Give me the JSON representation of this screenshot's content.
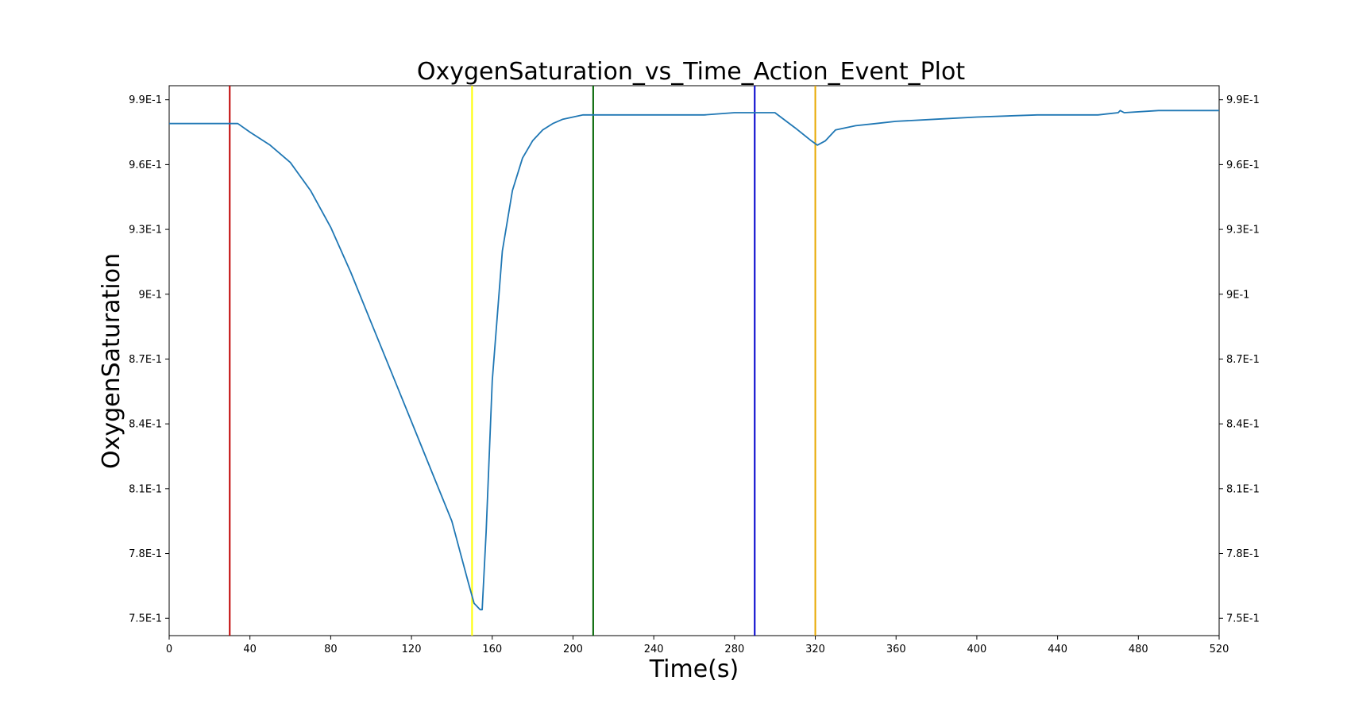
{
  "chart_data": {
    "type": "line",
    "title": "OxygenSaturation_vs_Time_Action_Event_Plot",
    "xlabel": "Time(s)",
    "ylabel": "OxygenSaturation",
    "xlim": [
      0,
      520
    ],
    "ylim": [
      0.742,
      0.9965
    ],
    "x_ticks": [
      0,
      40,
      80,
      120,
      160,
      200,
      240,
      280,
      320,
      360,
      400,
      440,
      480,
      520
    ],
    "x_tick_labels": [
      "0",
      "40",
      "80",
      "120",
      "160",
      "200",
      "240",
      "280",
      "320",
      "360",
      "400",
      "440",
      "480",
      "520"
    ],
    "y_ticks": [
      0.75,
      0.78,
      0.81,
      0.84,
      0.87,
      0.9,
      0.93,
      0.96,
      0.99
    ],
    "y_tick_labels": [
      "7.5E-1",
      "7.8E-1",
      "8.1E-1",
      "8.4E-1",
      "8.7E-1",
      "9E-1",
      "9.3E-1",
      "9.6E-1",
      "9.9E-1"
    ],
    "right_axis_tick_labels": true,
    "grid": false,
    "series": [
      {
        "color": "#1f77b4",
        "x": [
          0,
          30,
          34,
          40,
          50,
          60,
          70,
          80,
          90,
          100,
          110,
          120,
          130,
          140,
          148,
          151,
          154,
          155,
          157,
          160,
          165,
          170,
          175,
          180,
          185,
          190,
          195,
          200,
          205,
          210,
          220,
          234,
          250,
          265,
          280,
          290,
          300,
          310,
          318,
          321,
          325,
          330,
          340,
          350,
          360,
          380,
          400,
          430,
          460,
          470,
          471,
          473,
          490,
          520
        ],
        "y": [
          0.979,
          0.979,
          0.979,
          0.975,
          0.969,
          0.961,
          0.948,
          0.931,
          0.91,
          0.887,
          0.864,
          0.841,
          0.818,
          0.795,
          0.767,
          0.757,
          0.754,
          0.754,
          0.79,
          0.86,
          0.92,
          0.948,
          0.963,
          0.971,
          0.976,
          0.979,
          0.981,
          0.982,
          0.983,
          0.983,
          0.983,
          0.983,
          0.983,
          0.983,
          0.984,
          0.984,
          0.984,
          0.977,
          0.971,
          0.969,
          0.971,
          0.976,
          0.978,
          0.979,
          0.98,
          0.981,
          0.982,
          0.983,
          0.983,
          0.984,
          0.985,
          0.984,
          0.985,
          0.985
        ]
      }
    ],
    "event_lines": [
      {
        "x": 30,
        "color": "#c00000"
      },
      {
        "x": 150,
        "color": "#ffff00"
      },
      {
        "x": 210,
        "color": "#006400"
      },
      {
        "x": 290,
        "color": "#0000cc"
      },
      {
        "x": 320,
        "color": "#e8a800"
      }
    ]
  }
}
